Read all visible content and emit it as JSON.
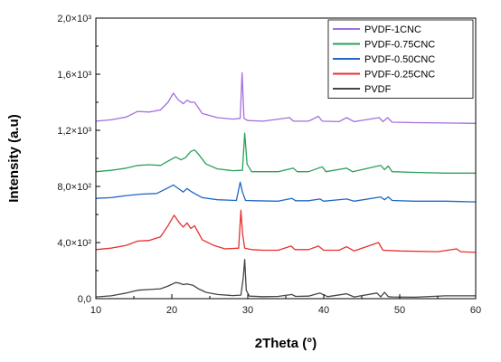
{
  "chart_data": {
    "type": "line",
    "title": "",
    "xlabel": "2Theta (°)",
    "ylabel": "Intensity (a.u)",
    "xlim": [
      10,
      60
    ],
    "ylim": [
      0,
      2000
    ],
    "x_ticks": [
      10,
      20,
      30,
      40,
      50,
      60
    ],
    "x_tick_labels": [
      "10",
      "20",
      "30",
      "40",
      "50",
      "60"
    ],
    "y_ticks": [
      0,
      400,
      800,
      1200,
      1600,
      2000
    ],
    "y_tick_labels": [
      "0,0",
      "4,0×10²",
      "8,0×10²",
      "1,2×10³",
      "1,6×10³",
      "2,0×10³"
    ],
    "grid": false,
    "legend_position": "top-right",
    "legend_order": [
      "PVDF-1CNC",
      "PVDF-0.75CNC",
      "PVDF-0.50CNC",
      "PVDF-0.25CNC",
      "PVDF"
    ],
    "series": [
      {
        "name": "PVDF",
        "color": "#454545",
        "x": [
          10,
          12,
          14,
          15.5,
          17,
          18.5,
          19.5,
          20.5,
          21,
          21.5,
          22,
          22.8,
          23.5,
          24.5,
          26,
          28,
          29.1,
          29.4,
          29.6,
          29.8,
          30.2,
          32,
          34,
          35.8,
          36.3,
          38,
          39.5,
          40.5,
          43,
          44,
          47,
          47.5,
          48,
          48.5,
          49,
          52,
          56,
          60
        ],
        "y": [
          12,
          20,
          40,
          60,
          65,
          70,
          90,
          115,
          110,
          100,
          105,
          95,
          70,
          45,
          30,
          22,
          25,
          150,
          280,
          60,
          18,
          14,
          16,
          30,
          16,
          18,
          40,
          14,
          35,
          12,
          40,
          12,
          45,
          14,
          12,
          10,
          20,
          20
        ]
      },
      {
        "name": "PVDF-0.25CNC",
        "color": "#e8302e",
        "x": [
          10,
          12,
          14,
          15.5,
          17,
          18.5,
          19.5,
          20.3,
          21,
          21.5,
          22,
          22.5,
          23,
          24,
          25.5,
          27,
          28.8,
          29.1,
          29.3,
          29.6,
          30.5,
          32,
          34,
          35.7,
          36.2,
          38,
          39.3,
          40,
          42,
          43,
          44,
          47.2,
          47.8,
          50,
          55,
          57.5,
          58,
          60
        ],
        "y": [
          350,
          360,
          380,
          410,
          415,
          440,
          520,
          595,
          540,
          510,
          540,
          500,
          520,
          420,
          380,
          355,
          360,
          630,
          470,
          360,
          350,
          345,
          345,
          375,
          350,
          350,
          375,
          345,
          345,
          370,
          340,
          400,
          345,
          340,
          335,
          355,
          335,
          330
        ]
      },
      {
        "name": "PVDF-0.50CNC",
        "color": "#2166c6",
        "x": [
          10,
          12,
          14,
          16,
          18,
          19.5,
          20.2,
          21,
          21.5,
          22,
          22.5,
          23,
          24,
          26,
          28.5,
          29,
          29.3,
          29.7,
          31,
          34,
          35.8,
          36.3,
          38,
          39.5,
          40,
          43,
          44,
          47.5,
          48,
          48.5,
          49,
          52,
          56,
          60
        ],
        "y": [
          715,
          720,
          735,
          745,
          750,
          790,
          810,
          780,
          760,
          785,
          765,
          750,
          720,
          705,
          700,
          830,
          760,
          700,
          698,
          695,
          715,
          698,
          698,
          710,
          695,
          710,
          695,
          725,
          705,
          725,
          700,
          695,
          695,
          690
        ]
      },
      {
        "name": "PVDF-0.75CNC",
        "color": "#2aa05a",
        "x": [
          10,
          12,
          14,
          15.5,
          17,
          18.5,
          19.5,
          20.5,
          21.2,
          21.8,
          22.5,
          23,
          23.5,
          24.5,
          26,
          28,
          29.3,
          29.6,
          29.9,
          30.5,
          32,
          34,
          36,
          36.5,
          38,
          39.8,
          40.3,
          43,
          43.8,
          47.5,
          48,
          48.5,
          49,
          52,
          56,
          60
        ],
        "y": [
          905,
          915,
          930,
          950,
          955,
          950,
          980,
          1010,
          990,
          1005,
          1050,
          1060,
          1030,
          960,
          925,
          912,
          915,
          1180,
          960,
          905,
          905,
          905,
          930,
          905,
          905,
          940,
          905,
          930,
          905,
          950,
          920,
          945,
          905,
          900,
          895,
          895
        ]
      },
      {
        "name": "PVDF-1CNC",
        "color": "#a46fdd",
        "x": [
          10,
          12,
          14,
          15.5,
          17,
          18.5,
          19.5,
          20.2,
          20.8,
          21.5,
          22,
          22.5,
          23,
          24,
          26,
          28,
          29,
          29.25,
          29.5,
          30,
          32,
          35.5,
          36,
          38,
          39.3,
          39.8,
          42,
          43,
          44,
          47.3,
          47.8,
          48.4,
          49,
          52,
          56,
          60
        ],
        "y": [
          1265,
          1275,
          1295,
          1335,
          1330,
          1345,
          1400,
          1465,
          1420,
          1390,
          1415,
          1400,
          1400,
          1320,
          1290,
          1280,
          1285,
          1610,
          1285,
          1270,
          1265,
          1290,
          1265,
          1265,
          1300,
          1265,
          1262,
          1290,
          1262,
          1290,
          1262,
          1290,
          1258,
          1255,
          1252,
          1250
        ]
      }
    ]
  }
}
